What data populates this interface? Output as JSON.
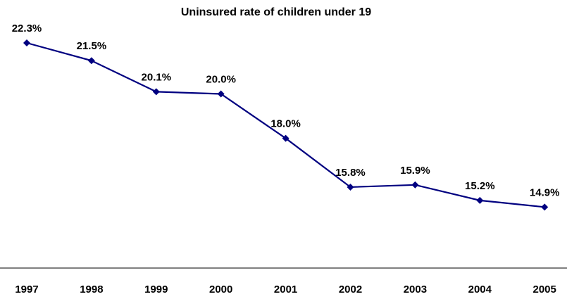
{
  "chart_data": {
    "type": "line",
    "title": "Uninsured rate of children under 19",
    "xlabel": "",
    "ylabel": "",
    "categories": [
      "1997",
      "1998",
      "1999",
      "2000",
      "2001",
      "2002",
      "2003",
      "2004",
      "2005"
    ],
    "series": [
      {
        "values": [
          22.3,
          21.5,
          20.1,
          20.0,
          18.0,
          15.8,
          15.9,
          15.2,
          14.9
        ],
        "labels": [
          "22.3%",
          "21.5%",
          "20.1%",
          "20.0%",
          "18.0%",
          "15.8%",
          "15.9%",
          "15.2%",
          "14.9%"
        ],
        "color": "#000080"
      }
    ],
    "ylim": [
      10,
      25
    ],
    "grid": false,
    "legend": "none"
  }
}
